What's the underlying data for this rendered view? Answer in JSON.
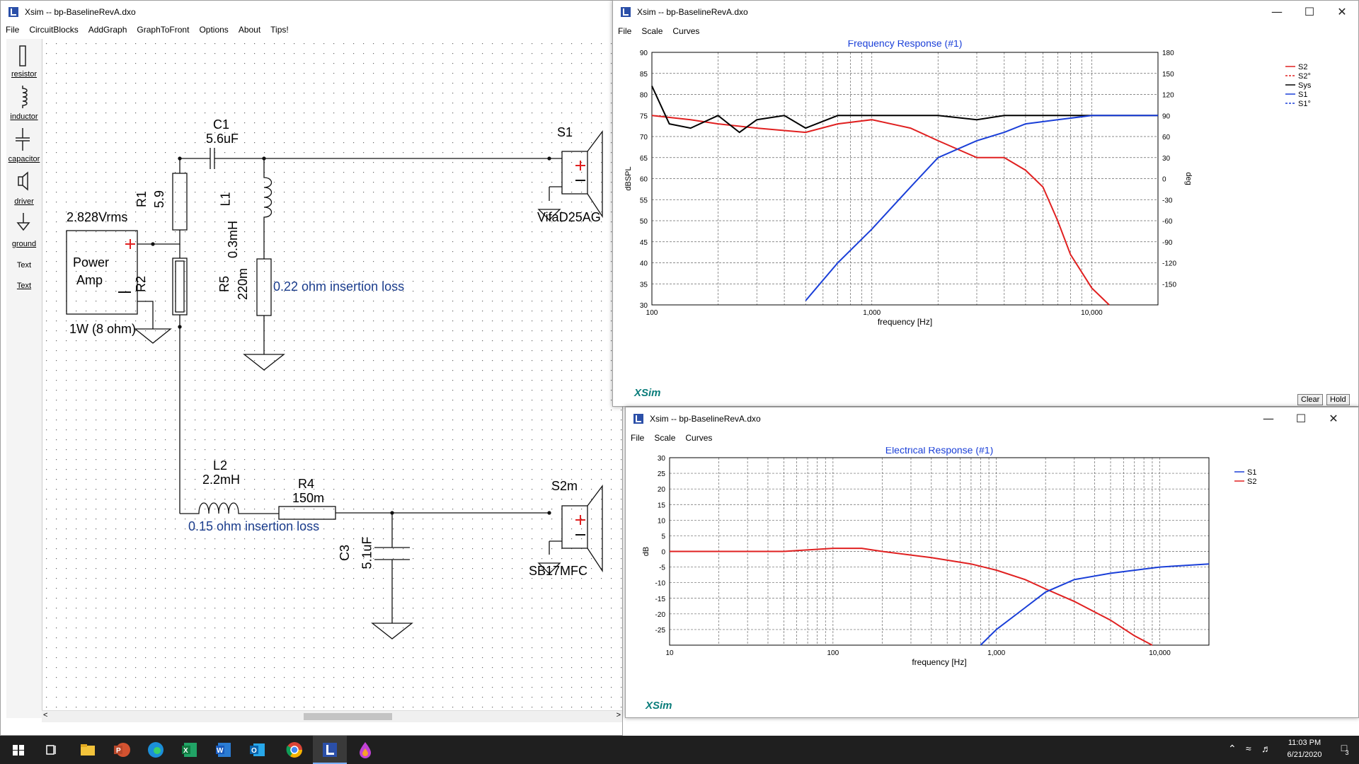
{
  "schematic_window": {
    "title": "Xsim -- bp-BaselineRevA.dxo",
    "menu": [
      "File",
      "CircuitBlocks",
      "AddGraph",
      "GraphToFront",
      "Options",
      "About",
      "Tips!"
    ],
    "toolbox": [
      "resistor",
      "inductor",
      "capacitor",
      "driver",
      "ground",
      "Text",
      "Text"
    ],
    "labels": {
      "c1_name": "C1",
      "c1_value": "5.6uF",
      "r1_name": "R1",
      "r1_value": "5.9",
      "l1_name": "L1",
      "l1_value": "0.3mH",
      "r5_name": "R5",
      "r5_value": "220m",
      "r2_name": "R2",
      "s1_name": "S1",
      "s1_model": "VifaD25AG",
      "source_voltage": "2.828Vrms",
      "amp_line1": "Power",
      "amp_line2": "Amp",
      "amp_power": "1W (8 ohm)",
      "insertion_loss_1": "0.22 ohm insertion loss",
      "l2_name": "L2",
      "l2_value": "2.2mH",
      "r4_name": "R4",
      "r4_value": "150m",
      "insertion_loss_2": "0.15 ohm insertion loss",
      "c3_name": "C3",
      "c3_value": "5.1uF",
      "s2_name": "S2m",
      "s2_model": "SB17MFC"
    }
  },
  "freq_window": {
    "title": "Xsim -- bp-BaselineRevA.dxo",
    "menu": [
      "File",
      "Scale",
      "Curves"
    ],
    "graph_title": "Frequency Response (#1)",
    "xlabel": "frequency [Hz]",
    "ylabel_left": "dBSPL",
    "ylabel_right": "deg",
    "yticks_left": [
      "90",
      "85",
      "80",
      "75",
      "70",
      "65",
      "60",
      "55",
      "50",
      "45",
      "40",
      "35",
      "30"
    ],
    "yticks_right": [
      "180",
      "150",
      "120",
      "90",
      "60",
      "30",
      "0",
      "-30",
      "-60",
      "-90",
      "-120",
      "-150"
    ],
    "xticks": [
      "100",
      "1,000",
      "10,000"
    ],
    "legend": [
      "S2",
      "S2°",
      "Sys",
      "S1",
      "S1°"
    ],
    "buttons": {
      "clear": "Clear",
      "hold": "Hold"
    },
    "brand": "XSim"
  },
  "elec_window": {
    "title": "Xsim -- bp-BaselineRevA.dxo",
    "menu": [
      "File",
      "Scale",
      "Curves"
    ],
    "graph_title": "Electrical Response (#1)",
    "xlabel": "frequency [Hz]",
    "ylabel": "dB",
    "yticks": [
      "30",
      "25",
      "20",
      "15",
      "10",
      "5",
      "0",
      "-5",
      "-10",
      "-15",
      "-20",
      "-25"
    ],
    "xticks": [
      "10",
      "100",
      "1,000",
      "10,000"
    ],
    "legend": [
      "S1",
      "S2"
    ],
    "brand": "XSim"
  },
  "chart_data": [
    {
      "type": "line",
      "title": "Frequency Response (#1)",
      "xlabel": "frequency [Hz]",
      "ylabel": "dBSPL",
      "y2label": "deg",
      "xscale": "log",
      "xlim": [
        100,
        20000
      ],
      "ylim": [
        30,
        90
      ],
      "y2lim": [
        -180,
        180
      ],
      "legend_position": "right",
      "series": [
        {
          "name": "S2",
          "axis": "left",
          "color": "#e02020",
          "x": [
            100,
            150,
            200,
            300,
            500,
            700,
            1000,
            1500,
            2000,
            3000,
            4000,
            5000,
            6000,
            7000,
            8000,
            10000,
            12000
          ],
          "y": [
            75,
            74,
            73,
            72,
            71,
            73,
            74,
            72,
            69,
            65,
            65,
            62,
            58,
            50,
            42,
            34,
            30
          ]
        },
        {
          "name": "Sys",
          "axis": "left",
          "color": "#000000",
          "x": [
            100,
            120,
            150,
            200,
            250,
            300,
            400,
            500,
            700,
            1000,
            1500,
            2000,
            3000,
            4000,
            5000,
            7000,
            10000,
            15000,
            20000
          ],
          "y": [
            82,
            73,
            72,
            75,
            71,
            74,
            75,
            72,
            75,
            75,
            75,
            75,
            74,
            75,
            75,
            75,
            75,
            75,
            75
          ]
        },
        {
          "name": "S1",
          "axis": "left",
          "color": "#1a3fd8",
          "x": [
            500,
            700,
            1000,
            1500,
            2000,
            3000,
            4000,
            5000,
            7000,
            10000,
            15000,
            20000
          ],
          "y": [
            31,
            40,
            48,
            58,
            65,
            69,
            71,
            73,
            74,
            75,
            75,
            75
          ]
        }
      ]
    },
    {
      "type": "line",
      "title": "Electrical Response (#1)",
      "xlabel": "frequency [Hz]",
      "ylabel": "dB",
      "xscale": "log",
      "xlim": [
        10,
        20000
      ],
      "ylim": [
        -30,
        30
      ],
      "legend_position": "right",
      "series": [
        {
          "name": "S2",
          "color": "#e02020",
          "x": [
            10,
            50,
            100,
            150,
            200,
            400,
            700,
            1000,
            1500,
            2000,
            3000,
            5000,
            7000,
            9000
          ],
          "y": [
            0,
            0,
            1,
            1,
            0,
            -2,
            -4,
            -6,
            -9,
            -12,
            -16,
            -22,
            -27,
            -30
          ]
        },
        {
          "name": "S1",
          "color": "#1a3fd8",
          "x": [
            800,
            1000,
            1500,
            2000,
            3000,
            5000,
            10000,
            20000
          ],
          "y": [
            -30,
            -25,
            -18,
            -13,
            -9,
            -7,
            -5,
            -4
          ]
        }
      ]
    }
  ],
  "taskbar": {
    "time": "11:03 PM",
    "date": "6/21/2020",
    "notifications": "3"
  }
}
